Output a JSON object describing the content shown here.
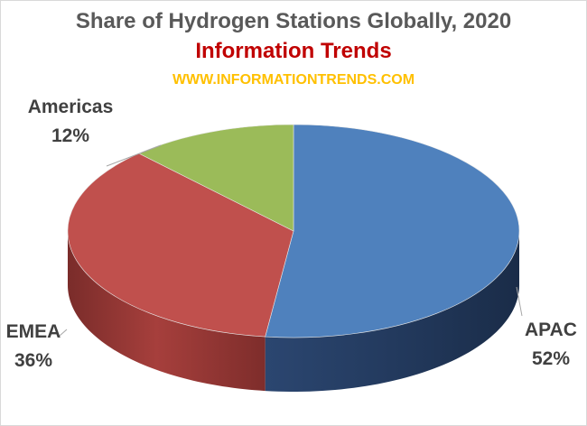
{
  "header": {
    "title": "Share of Hydrogen Stations Globally, 2020",
    "subtitle": "Information Trends",
    "url": "WWW.INFORMATIONTRENDS.COM"
  },
  "chart_data": {
    "type": "pie",
    "title": "Share of Hydrogen Stations Globally, 2020",
    "subtitle": "Information Trends",
    "style": "3d",
    "categories": [
      "APAC",
      "EMEA",
      "Americas"
    ],
    "values": [
      52,
      36,
      12
    ],
    "value_labels": [
      "52%",
      "36%",
      "12%"
    ],
    "colors": [
      "#4f81bd",
      "#c0504d",
      "#9bbb59"
    ],
    "legend": "none"
  }
}
